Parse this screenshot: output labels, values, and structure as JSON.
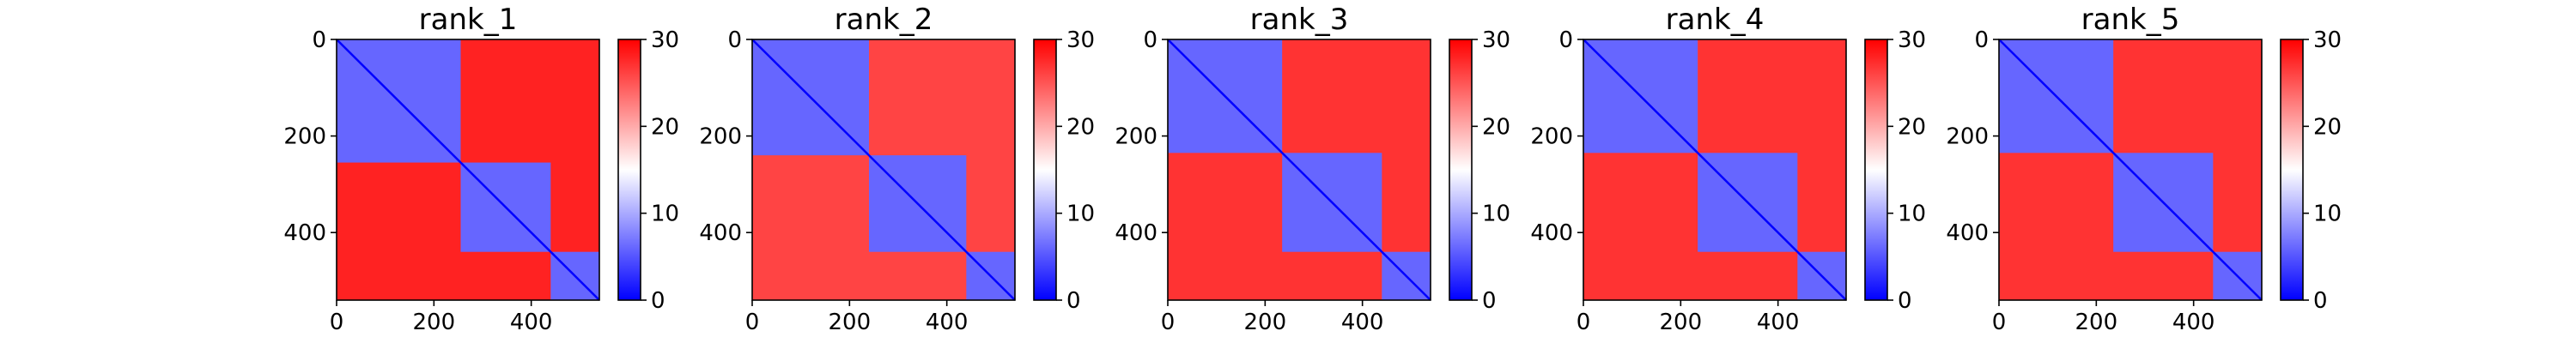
{
  "chart_data": [
    {
      "type": "heatmap",
      "title": "rank_1",
      "x_ticks": [
        0,
        200,
        400
      ],
      "y_ticks": [
        0,
        200,
        400
      ],
      "xlim": [
        0,
        540
      ],
      "ylim": [
        540,
        0
      ],
      "colorbar": {
        "range": [
          0,
          30
        ],
        "ticks": [
          0,
          10,
          20,
          30
        ],
        "colormap": [
          "#0000ff",
          "#ffffff",
          "#ff0000"
        ]
      },
      "domains": [
        [
          0,
          255
        ],
        [
          255,
          440
        ],
        [
          440,
          540
        ]
      ],
      "intra_domain_value": 6,
      "inter_domain_value": 28
    },
    {
      "type": "heatmap",
      "title": "rank_2",
      "x_ticks": [
        0,
        200,
        400
      ],
      "y_ticks": [
        0,
        200,
        400
      ],
      "xlim": [
        0,
        540
      ],
      "ylim": [
        540,
        0
      ],
      "colorbar": {
        "range": [
          0,
          30
        ],
        "ticks": [
          0,
          10,
          20,
          30
        ],
        "colormap": [
          "#0000ff",
          "#ffffff",
          "#ff0000"
        ]
      },
      "domains": [
        [
          0,
          240
        ],
        [
          240,
          440
        ],
        [
          440,
          540
        ]
      ],
      "intra_domain_value": 6,
      "inter_domain_value": 26
    },
    {
      "type": "heatmap",
      "title": "rank_3",
      "x_ticks": [
        0,
        200,
        400
      ],
      "y_ticks": [
        0,
        200,
        400
      ],
      "xlim": [
        0,
        540
      ],
      "ylim": [
        540,
        0
      ],
      "colorbar": {
        "range": [
          0,
          30
        ],
        "ticks": [
          0,
          10,
          20,
          30
        ],
        "colormap": [
          "#0000ff",
          "#ffffff",
          "#ff0000"
        ]
      },
      "domains": [
        [
          0,
          235
        ],
        [
          235,
          440
        ],
        [
          440,
          540
        ]
      ],
      "intra_domain_value": 6,
      "inter_domain_value": 27
    },
    {
      "type": "heatmap",
      "title": "rank_4",
      "x_ticks": [
        0,
        200,
        400
      ],
      "y_ticks": [
        0,
        200,
        400
      ],
      "xlim": [
        0,
        540
      ],
      "ylim": [
        540,
        0
      ],
      "colorbar": {
        "range": [
          0,
          30
        ],
        "ticks": [
          0,
          10,
          20,
          30
        ],
        "colormap": [
          "#0000ff",
          "#ffffff",
          "#ff0000"
        ]
      },
      "domains": [
        [
          0,
          235
        ],
        [
          235,
          440
        ],
        [
          440,
          540
        ]
      ],
      "intra_domain_value": 6,
      "inter_domain_value": 27
    },
    {
      "type": "heatmap",
      "title": "rank_5",
      "x_ticks": [
        0,
        200,
        400
      ],
      "y_ticks": [
        0,
        200,
        400
      ],
      "xlim": [
        0,
        540
      ],
      "ylim": [
        540,
        0
      ],
      "colorbar": {
        "range": [
          0,
          30
        ],
        "ticks": [
          0,
          10,
          20,
          30
        ],
        "colormap": [
          "#0000ff",
          "#ffffff",
          "#ff0000"
        ]
      },
      "domains": [
        [
          0,
          235
        ],
        [
          235,
          440
        ],
        [
          440,
          540
        ]
      ],
      "intra_domain_value": 6,
      "inter_domain_value": 27
    }
  ]
}
